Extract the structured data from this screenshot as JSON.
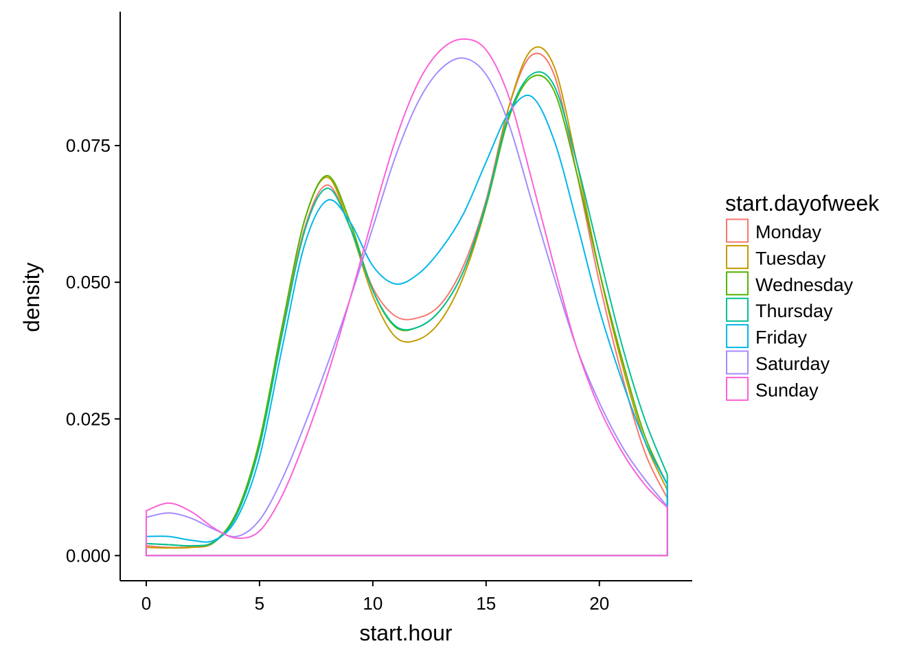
{
  "chart_data": {
    "type": "line",
    "title": "",
    "xlabel": "start.hour",
    "ylabel": "density",
    "xlim": [
      -1.15,
      24.1
    ],
    "ylim": [
      -0.0046,
      0.0995
    ],
    "x_ticks": [
      0,
      5,
      10,
      15,
      20
    ],
    "x_tick_labels": [
      "0",
      "5",
      "10",
      "15",
      "20"
    ],
    "y_ticks": [
      0,
      0.025,
      0.05,
      0.075
    ],
    "y_tick_labels": [
      "0.000",
      "0.025",
      "0.050",
      "0.075"
    ],
    "grid": false,
    "legend": {
      "title": "start.dayofweek",
      "placement": "right"
    },
    "x_range": [
      0,
      23
    ],
    "series": [
      {
        "name": "Monday",
        "color": "#F8766D",
        "points": [
          [
            0,
            0.0018
          ],
          [
            1,
            0.0015
          ],
          [
            2,
            0.0016
          ],
          [
            3,
            0.0025
          ],
          [
            4,
            0.008
          ],
          [
            5,
            0.02
          ],
          [
            6,
            0.041
          ],
          [
            7,
            0.06
          ],
          [
            8,
            0.0678
          ],
          [
            9,
            0.06
          ],
          [
            10,
            0.049
          ],
          [
            11,
            0.0438
          ],
          [
            12,
            0.0435
          ],
          [
            13,
            0.046
          ],
          [
            14,
            0.053
          ],
          [
            15,
            0.065
          ],
          [
            16,
            0.082
          ],
          [
            17,
            0.0915
          ],
          [
            18,
            0.088
          ],
          [
            19,
            0.07
          ],
          [
            20,
            0.05
          ],
          [
            21,
            0.033
          ],
          [
            22,
            0.019
          ],
          [
            23,
            0.0105
          ]
        ]
      },
      {
        "name": "Tuesday",
        "color": "#C49A00",
        "points": [
          [
            0,
            0.0015
          ],
          [
            1,
            0.0014
          ],
          [
            2,
            0.0015
          ],
          [
            3,
            0.0024
          ],
          [
            4,
            0.008
          ],
          [
            5,
            0.021
          ],
          [
            6,
            0.042
          ],
          [
            7,
            0.0615
          ],
          [
            8,
            0.0692
          ],
          [
            9,
            0.06
          ],
          [
            10,
            0.0475
          ],
          [
            11,
            0.04
          ],
          [
            12,
            0.0395
          ],
          [
            13,
            0.043
          ],
          [
            14,
            0.051
          ],
          [
            15,
            0.064
          ],
          [
            16,
            0.082
          ],
          [
            17,
            0.0925
          ],
          [
            18,
            0.0895
          ],
          [
            19,
            0.072
          ],
          [
            20,
            0.052
          ],
          [
            21,
            0.035
          ],
          [
            22,
            0.021
          ],
          [
            23,
            0.012
          ]
        ]
      },
      {
        "name": "Wednesday",
        "color": "#53B400",
        "points": [
          [
            0,
            0.0022
          ],
          [
            1,
            0.002
          ],
          [
            2,
            0.0018
          ],
          [
            3,
            0.0026
          ],
          [
            4,
            0.008
          ],
          [
            5,
            0.021
          ],
          [
            6,
            0.042
          ],
          [
            7,
            0.0615
          ],
          [
            8,
            0.0695
          ],
          [
            9,
            0.061
          ],
          [
            10,
            0.0485
          ],
          [
            11,
            0.0418
          ],
          [
            12,
            0.0418
          ],
          [
            13,
            0.045
          ],
          [
            14,
            0.052
          ],
          [
            15,
            0.064
          ],
          [
            16,
            0.08
          ],
          [
            17,
            0.0875
          ],
          [
            18,
            0.085
          ],
          [
            19,
            0.07
          ],
          [
            20,
            0.052
          ],
          [
            21,
            0.036
          ],
          [
            22,
            0.022
          ],
          [
            23,
            0.013
          ]
        ]
      },
      {
        "name": "Thursday",
        "color": "#00C094",
        "points": [
          [
            0,
            0.0022
          ],
          [
            1,
            0.002
          ],
          [
            2,
            0.0018
          ],
          [
            3,
            0.0025
          ],
          [
            4,
            0.0075
          ],
          [
            5,
            0.02
          ],
          [
            6,
            0.0405
          ],
          [
            7,
            0.0595
          ],
          [
            8,
            0.0672
          ],
          [
            9,
            0.06
          ],
          [
            10,
            0.0485
          ],
          [
            11,
            0.042
          ],
          [
            12,
            0.0418
          ],
          [
            13,
            0.045
          ],
          [
            14,
            0.052
          ],
          [
            15,
            0.0645
          ],
          [
            16,
            0.0805
          ],
          [
            17,
            0.088
          ],
          [
            18,
            0.086
          ],
          [
            19,
            0.072
          ],
          [
            20,
            0.055
          ],
          [
            21,
            0.0385
          ],
          [
            22,
            0.025
          ],
          [
            23,
            0.0148
          ]
        ]
      },
      {
        "name": "Friday",
        "color": "#00B6EB",
        "points": [
          [
            0,
            0.0035
          ],
          [
            1,
            0.0035
          ],
          [
            2,
            0.0028
          ],
          [
            3,
            0.0028
          ],
          [
            4,
            0.0068
          ],
          [
            5,
            0.018
          ],
          [
            6,
            0.038
          ],
          [
            7,
            0.057
          ],
          [
            8,
            0.065
          ],
          [
            9,
            0.061
          ],
          [
            10,
            0.053
          ],
          [
            11,
            0.0497
          ],
          [
            12,
            0.0515
          ],
          [
            13,
            0.056
          ],
          [
            14,
            0.0625
          ],
          [
            15,
            0.072
          ],
          [
            16,
            0.081
          ],
          [
            17,
            0.084
          ],
          [
            18,
            0.076
          ],
          [
            19,
            0.061
          ],
          [
            20,
            0.045
          ],
          [
            21,
            0.032
          ],
          [
            22,
            0.021
          ],
          [
            23,
            0.013
          ]
        ]
      },
      {
        "name": "Saturday",
        "color": "#A58AFF",
        "points": [
          [
            0,
            0.007
          ],
          [
            1,
            0.0078
          ],
          [
            2,
            0.0068
          ],
          [
            3,
            0.0048
          ],
          [
            4,
            0.0035
          ],
          [
            5,
            0.0065
          ],
          [
            6,
            0.014
          ],
          [
            7,
            0.024
          ],
          [
            8,
            0.035
          ],
          [
            9,
            0.047
          ],
          [
            10,
            0.06
          ],
          [
            11,
            0.073
          ],
          [
            12,
            0.083
          ],
          [
            13,
            0.089
          ],
          [
            14,
            0.091
          ],
          [
            15,
            0.088
          ],
          [
            16,
            0.079
          ],
          [
            17,
            0.065
          ],
          [
            18,
            0.051
          ],
          [
            19,
            0.038
          ],
          [
            20,
            0.028
          ],
          [
            21,
            0.02
          ],
          [
            22,
            0.014
          ],
          [
            23,
            0.009
          ]
        ]
      },
      {
        "name": "Sunday",
        "color": "#FB61D7",
        "points": [
          [
            0,
            0.0082
          ],
          [
            1,
            0.0096
          ],
          [
            2,
            0.008
          ],
          [
            3,
            0.005
          ],
          [
            4,
            0.0032
          ],
          [
            5,
            0.0045
          ],
          [
            6,
            0.011
          ],
          [
            7,
            0.021
          ],
          [
            8,
            0.033
          ],
          [
            9,
            0.047
          ],
          [
            10,
            0.062
          ],
          [
            11,
            0.076
          ],
          [
            12,
            0.0865
          ],
          [
            13,
            0.0925
          ],
          [
            14,
            0.0945
          ],
          [
            15,
            0.0925
          ],
          [
            16,
            0.084
          ],
          [
            17,
            0.069
          ],
          [
            18,
            0.053
          ],
          [
            19,
            0.038
          ],
          [
            20,
            0.027
          ],
          [
            21,
            0.019
          ],
          [
            22,
            0.013
          ],
          [
            23,
            0.0088
          ]
        ]
      }
    ]
  }
}
